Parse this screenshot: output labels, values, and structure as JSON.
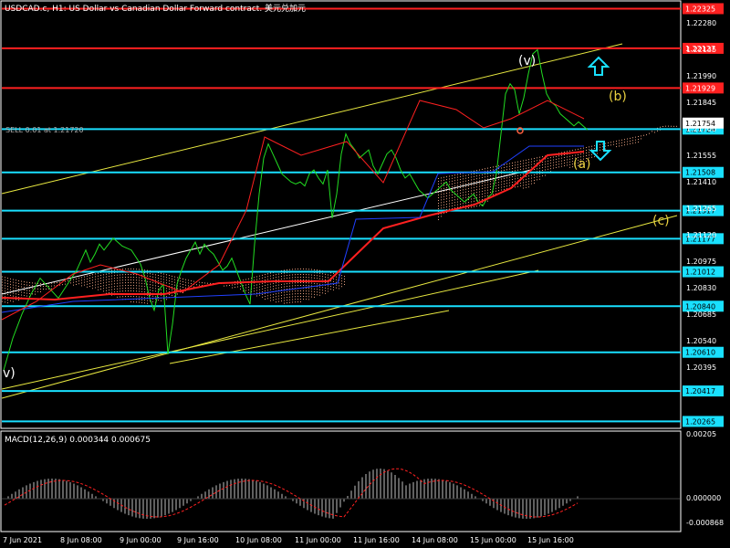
{
  "header": {
    "title": "USDCAD.c, H1:  US Dollar vs Canadian Dollar Forward contract. 美元兑加元"
  },
  "trade_label": "SELL 0.01 at 1.21720",
  "chart_data": [
    {
      "type": "line",
      "title": "USDCAD.c, H1:  US Dollar vs Canadian Dollar Forward contract. 美元兑加元",
      "ylim": [
        1.20235,
        1.2235
      ],
      "y_ticks": [
        "1.22280",
        "1.22135",
        "1.21990",
        "1.21845",
        "1.21700",
        "1.21555",
        "1.21410",
        "1.21265",
        "1.21120",
        "1.20975",
        "1.20830",
        "1.20685",
        "1.20540",
        "1.20395"
      ],
      "x_ticks": [
        "7 Jun 2021",
        "8 Jun 08:00",
        "9 Jun 00:00",
        "9 Jun 16:00",
        "10 Jun 08:00",
        "11 Jun 00:00",
        "11 Jun 16:00",
        "14 Jun 08:00",
        "15 Jun 00:00",
        "15 Jun 16:00"
      ],
      "levels": [
        {
          "value": 1.22325,
          "label": "1.22325",
          "color": "#ff2020"
        },
        {
          "value": 1.22127,
          "label": "1.22127",
          "color": "#ff2020"
        },
        {
          "value": 1.21929,
          "label": "1.21929",
          "color": "#ff2020"
        },
        {
          "value": 1.21724,
          "label": "1.21724",
          "color": "#19e0ff"
        },
        {
          "value": 1.21508,
          "label": "1.21508",
          "color": "#19e0ff"
        },
        {
          "value": 1.21317,
          "label": "1.21317",
          "color": "#19e0ff"
        },
        {
          "value": 1.21177,
          "label": "1.21177",
          "color": "#19e0ff"
        },
        {
          "value": 1.21012,
          "label": "1.21012",
          "color": "#19e0ff"
        },
        {
          "value": 1.2084,
          "label": "1.20840",
          "color": "#19e0ff"
        },
        {
          "value": 1.2061,
          "label": "1.20610",
          "color": "#19e0ff"
        },
        {
          "value": 1.20417,
          "label": "1.20417",
          "color": "#19e0ff"
        },
        {
          "value": 1.20265,
          "label": "1.20265",
          "color": "#19e0ff"
        }
      ],
      "current_price": {
        "value": 1.21754,
        "label": "1.21754"
      },
      "wave_labels": [
        "(v)",
        "(b)",
        "(a)",
        "(c)",
        "v)"
      ],
      "series": [
        {
          "name": "",
          "color": "#22dd22",
          "x": [
            0,
            10,
            20,
            30,
            40,
            50,
            60,
            70,
            80,
            90,
            95,
            100,
            105,
            110,
            120,
            130,
            140,
            150,
            155,
            160,
            165,
            170,
            175,
            180,
            185,
            190,
            195,
            200,
            205,
            210,
            215,
            220,
            225,
            230,
            235,
            240,
            245,
            250,
            255,
            260,
            265,
            270,
            275,
            280,
            285,
            290,
            295,
            300,
            305,
            310,
            315,
            320,
            325,
            330,
            335,
            340,
            345,
            350,
            355,
            360,
            365,
            370,
            375,
            380,
            385,
            390,
            395,
            400,
            405,
            410,
            415,
            420,
            425,
            430,
            435,
            440,
            445,
            450,
            455,
            460,
            465,
            470,
            475,
            480,
            485,
            490,
            495,
            500,
            505,
            510,
            515,
            520,
            525,
            530,
            535,
            540,
            545,
            550,
            555,
            560,
            565,
            570,
            575,
            580,
            585,
            590,
            595,
            600,
            605,
            610,
            615,
            620,
            625,
            630,
            635,
            640
          ],
          "y": [
            1.2052,
            1.2068,
            1.208,
            1.209,
            1.2098,
            1.2093,
            1.2088,
            1.2095,
            1.2102,
            1.2112,
            1.2106,
            1.211,
            1.2115,
            1.2112,
            1.2118,
            1.2114,
            1.2112,
            1.2105,
            1.2098,
            1.2088,
            1.2082,
            1.2092,
            1.2095,
            1.206,
            1.2075,
            1.2095,
            1.2102,
            1.2108,
            1.2112,
            1.2116,
            1.211,
            1.2115,
            1.2112,
            1.211,
            1.2106,
            1.2102,
            1.2104,
            1.2108,
            1.2102,
            1.2096,
            1.209,
            1.2085,
            1.2115,
            1.214,
            1.2158,
            1.2165,
            1.216,
            1.2155,
            1.215,
            1.2148,
            1.2146,
            1.2145,
            1.2146,
            1.2144,
            1.215,
            1.2152,
            1.2148,
            1.2145,
            1.2152,
            1.2128,
            1.214,
            1.216,
            1.217,
            1.2165,
            1.2162,
            1.2158,
            1.216,
            1.2162,
            1.2154,
            1.215,
            1.2155,
            1.216,
            1.2162,
            1.2158,
            1.2152,
            1.2148,
            1.215,
            1.2146,
            1.2142,
            1.214,
            1.2138,
            1.214,
            1.2142,
            1.2144,
            1.2146,
            1.2142,
            1.214,
            1.2138,
            1.2136,
            1.2138,
            1.214,
            1.2136,
            1.2134,
            1.2138,
            1.214,
            1.215,
            1.217,
            1.219,
            1.2195,
            1.2192,
            1.218,
            1.2188,
            1.22,
            1.221,
            1.2212,
            1.22,
            1.219,
            1.2186,
            1.2184,
            1.218,
            1.2178,
            1.2176,
            1.2174,
            1.2176,
            1.2174,
            1.2172
          ]
        }
      ],
      "macd": {
        "label": "MACD(12,26,9) 0.000344 0.000675",
        "y_ticks": [
          "0.00205",
          "0.000000",
          "-0.000868"
        ]
      }
    }
  ]
}
